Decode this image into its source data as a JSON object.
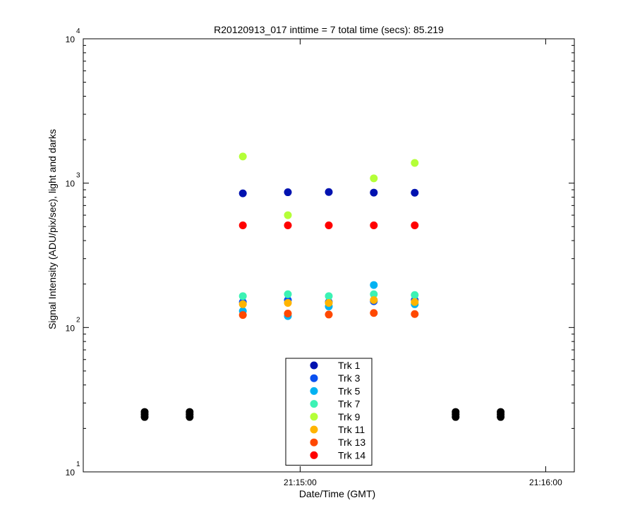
{
  "chart_data": {
    "type": "scatter",
    "title": "R20120913_017 inttime = 7 total time (secs): 85.219",
    "xlabel": "Date/Time (GMT)",
    "ylabel": "Signal Intensity (ADU/pix/sec), light and darks",
    "y_scale": "log",
    "ylim": [
      10,
      10000
    ],
    "xlim": [
      "21:14:07",
      "21:16:07"
    ],
    "x_ticks": [
      "21:15:00",
      "21:16:00"
    ],
    "y_ticks": [
      {
        "base": "10",
        "exp": "1"
      },
      {
        "base": "10",
        "exp": "2"
      },
      {
        "base": "10",
        "exp": "3"
      },
      {
        "base": "10",
        "exp": "4"
      }
    ],
    "grid": false,
    "legend_position": "bottom-center",
    "x": [
      "21:14:46",
      "21:14:57",
      "21:15:07",
      "21:15:18",
      "21:15:28"
    ],
    "series": [
      {
        "name": "Trk 1",
        "color": "#0012b0",
        "values": [
          850,
          865,
          868,
          860,
          858
        ]
      },
      {
        "name": "Trk 3",
        "color": "#0a50f0",
        "values": [
          150,
          155,
          150,
          152,
          155
        ]
      },
      {
        "name": "Trk 5",
        "color": "#00b2f2",
        "values": [
          130,
          120,
          140,
          197,
          145
        ]
      },
      {
        "name": "Trk 7",
        "color": "#3cf2b4",
        "values": [
          165,
          170,
          165,
          170,
          168
        ]
      },
      {
        "name": "Trk 9",
        "color": "#b4ff38",
        "values": [
          1530,
          600,
          null,
          1080,
          1380
        ]
      },
      {
        "name": "Trk 11",
        "color": "#ffb400",
        "values": [
          145,
          148,
          148,
          155,
          150
        ]
      },
      {
        "name": "Trk 13",
        "color": "#ff4800",
        "values": [
          122,
          125,
          123,
          126,
          124
        ]
      },
      {
        "name": "Trk 14",
        "color": "#ff0000",
        "values": [
          510,
          510,
          510,
          510,
          510
        ]
      }
    ],
    "darks": {
      "color": "#000000",
      "x": [
        "21:14:22",
        "21:14:33",
        "21:15:38",
        "21:15:49"
      ],
      "values": [
        [
          24,
          25,
          26
        ],
        [
          24,
          25,
          26
        ],
        [
          24,
          25,
          26
        ],
        [
          24,
          25,
          26
        ]
      ]
    }
  }
}
